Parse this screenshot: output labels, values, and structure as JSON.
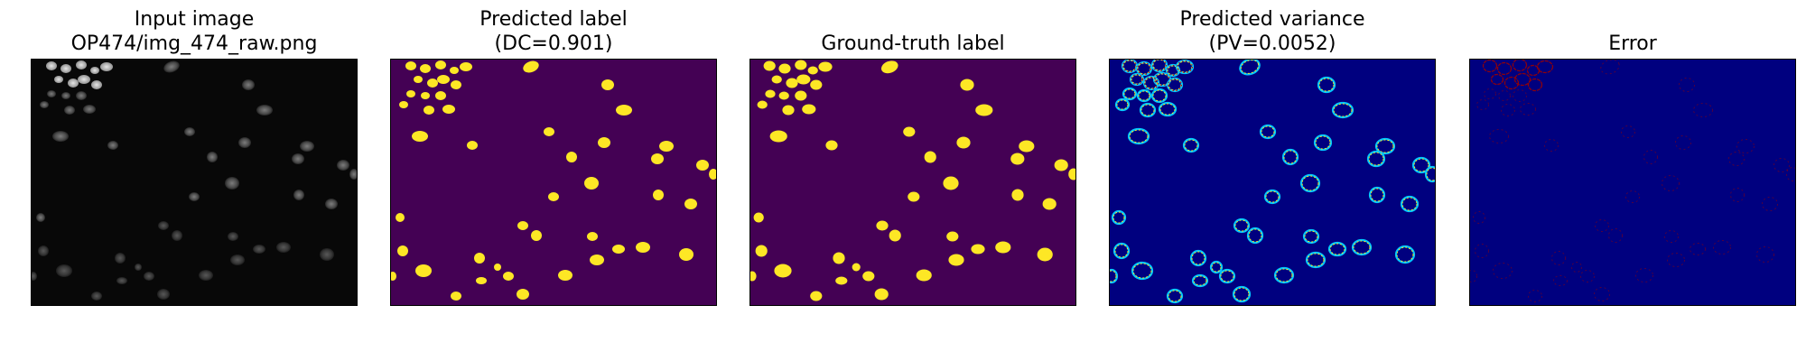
{
  "figure": {
    "panels": [
      {
        "id": "input",
        "title_lines": [
          "Input image",
          "OP474/img_474_raw.png"
        ],
        "colormap": "gray",
        "background": "#080808"
      },
      {
        "id": "pred",
        "title_lines": [
          "Predicted label",
          "(DC=0.901)"
        ],
        "colormap": "viridis",
        "background": "#440154",
        "foreground": "#fde725"
      },
      {
        "id": "gt",
        "title_lines": [
          "Ground-truth label"
        ],
        "colormap": "viridis",
        "background": "#440154",
        "foreground": "#fde725"
      },
      {
        "id": "var",
        "title_lines": [
          "Predicted variance",
          "(PV=0.0052)"
        ],
        "colormap": "jet",
        "background": "#00007f"
      },
      {
        "id": "err",
        "title_lines": [
          "Error"
        ],
        "colormap": "jet",
        "background": "#00007f",
        "accent": "#9b0000"
      }
    ],
    "colors": {
      "jet_low": "#00007f",
      "jet_mid": "#00c8ff",
      "jet_high": "#fde725",
      "jet_peak": "#b80000"
    }
  }
}
